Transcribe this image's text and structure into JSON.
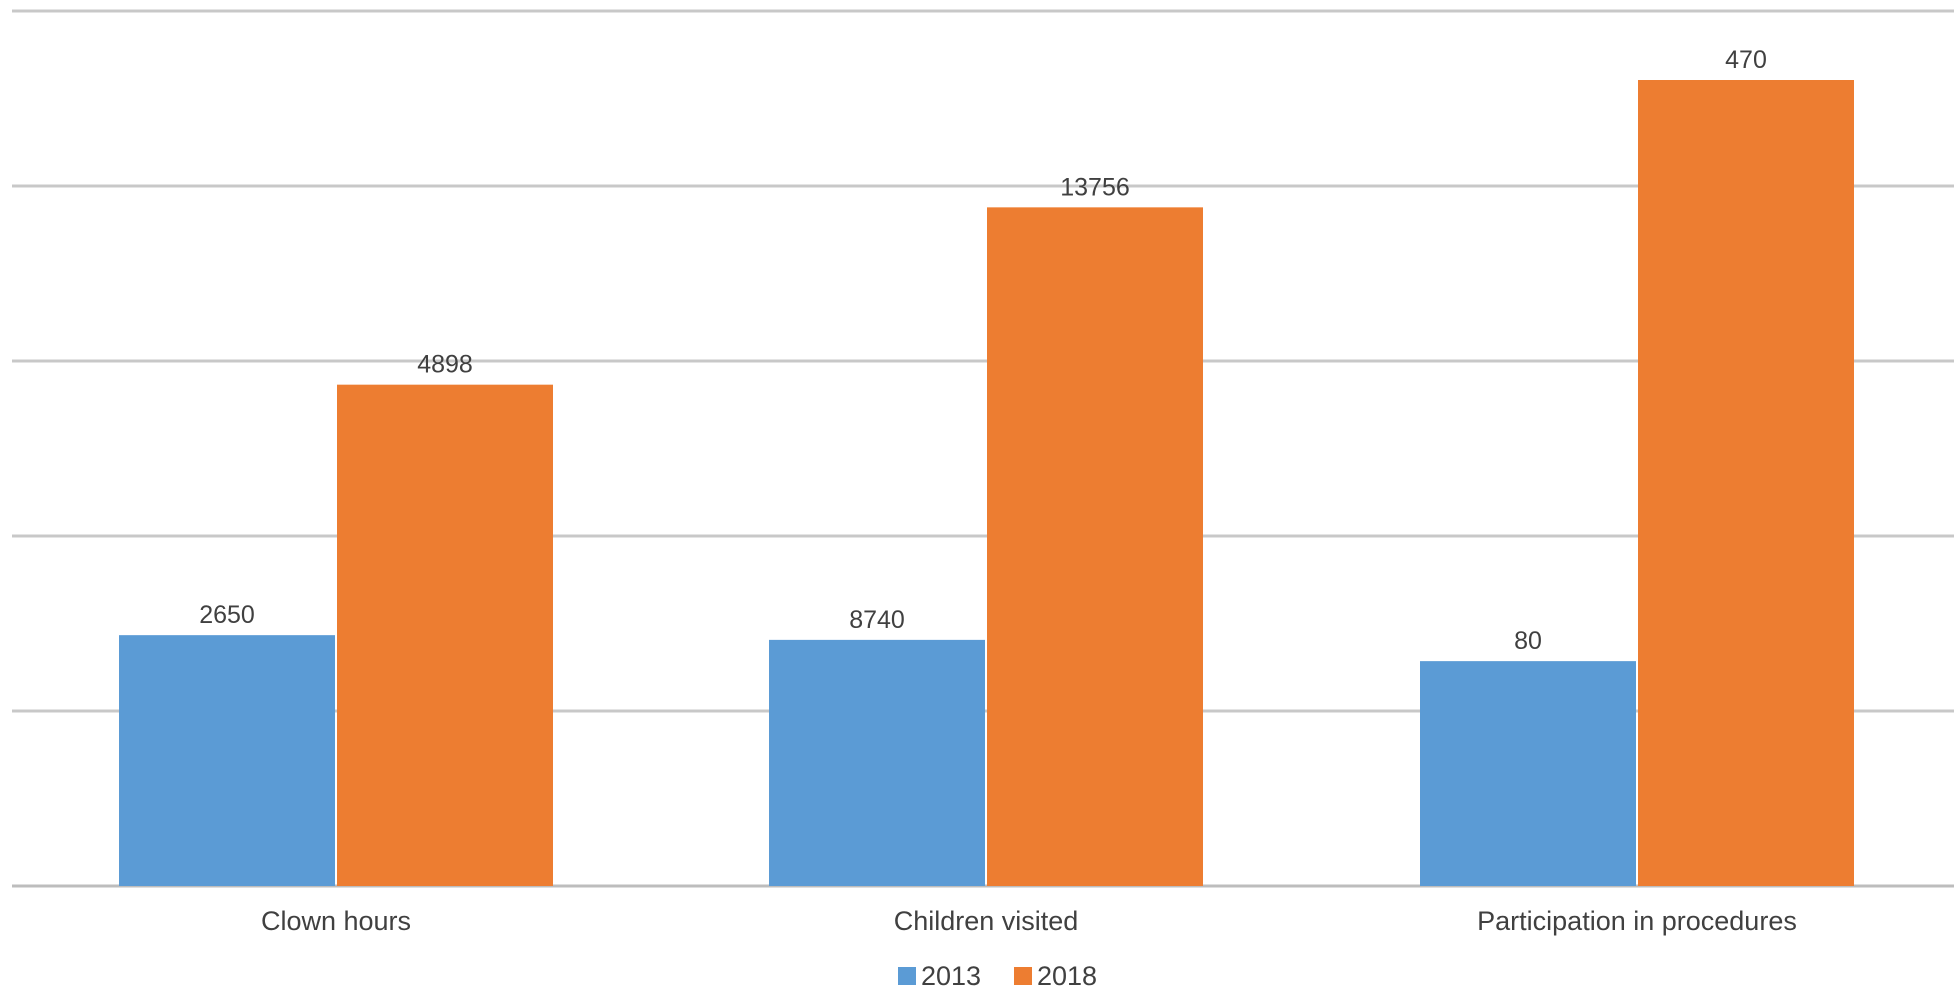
{
  "chart_data": {
    "type": "bar",
    "categories": [
      "Clown hours",
      "Children visited",
      "Participation in procedures"
    ],
    "series": [
      {
        "name": "2013",
        "color": "#5b9bd5",
        "values": [
          2650,
          8740,
          80
        ],
        "labels": [
          "2650",
          "8740",
          "80"
        ]
      },
      {
        "name": "2018",
        "color": "#ed7d31",
        "values": [
          4898,
          13756,
          470
        ],
        "labels": [
          "4898",
          "13756",
          "470"
        ]
      }
    ],
    "title": "",
    "xlabel": "",
    "ylabel": "",
    "value_axis": "hidden (each category drawn on its own scale)",
    "grid": true,
    "legend": "bottom-center"
  }
}
